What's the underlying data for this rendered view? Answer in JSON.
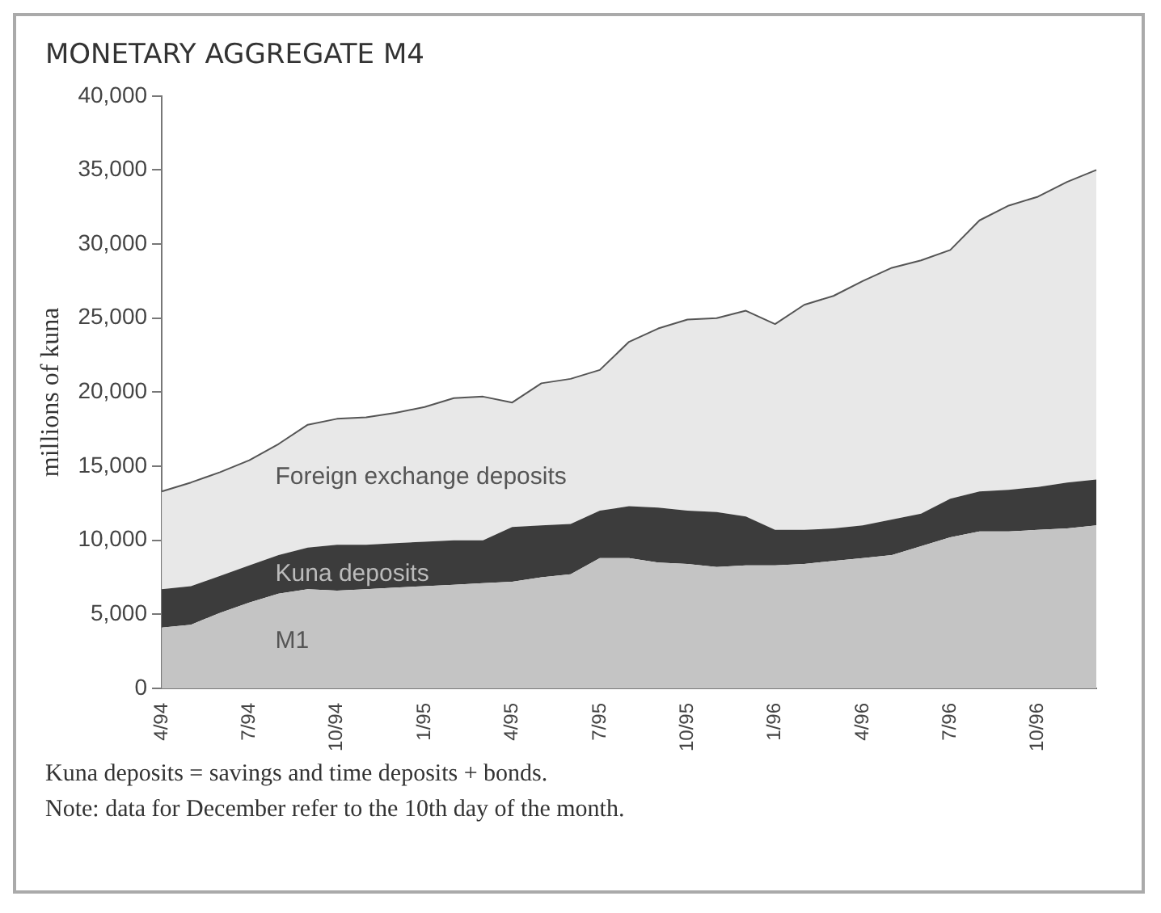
{
  "chart_data": {
    "type": "area",
    "title": "MONETARY AGGREGATE  M4",
    "ylabel": "millions of kuna",
    "categories": [
      "4/94",
      null,
      null,
      "7/94",
      null,
      null,
      "10/94",
      null,
      null,
      "1/95",
      null,
      null,
      "4/95",
      null,
      null,
      "7/95",
      null,
      null,
      "10/95",
      null,
      null,
      "1/96",
      null,
      null,
      "4/96",
      null,
      null,
      "7/96",
      null,
      null,
      "10/96",
      null,
      null
    ],
    "stacked": true,
    "series": [
      {
        "name": "M1",
        "color": "#c4c4c4",
        "values": [
          4100,
          4300,
          5100,
          5800,
          6400,
          6700,
          6600,
          6700,
          6800,
          6900,
          7000,
          7100,
          7200,
          7500,
          7700,
          8800,
          8800,
          8500,
          8400,
          8200,
          8300,
          8300,
          8400,
          8600,
          8800,
          9000,
          9600,
          10200,
          10600,
          10600,
          10700,
          10800,
          11000
        ]
      },
      {
        "name": "Kuna deposits",
        "color": "#3c3c3c",
        "values": [
          2600,
          2600,
          2500,
          2500,
          2600,
          2800,
          3100,
          3000,
          3000,
          3000,
          3000,
          2900,
          3700,
          3500,
          3400,
          3200,
          3500,
          3700,
          3600,
          3700,
          3300,
          2400,
          2300,
          2200,
          2200,
          2400,
          2200,
          2600,
          2700,
          2800,
          2900,
          3100,
          3100
        ]
      },
      {
        "name": "Foreign exchange deposits",
        "color": "#e8e8e8",
        "values": [
          6600,
          7000,
          7000,
          7100,
          7500,
          8300,
          8500,
          8600,
          8800,
          9100,
          9600,
          9700,
          8400,
          9600,
          9800,
          9500,
          11100,
          12100,
          12900,
          13100,
          13900,
          13900,
          15200,
          15700,
          16500,
          17000,
          17100,
          16800,
          18300,
          19200,
          19600,
          20300,
          20900
        ]
      }
    ],
    "ylim": [
      0,
      40000
    ],
    "yticks": [
      0,
      {
        "value": 5000,
        "label": "5,000"
      },
      {
        "value": 10000,
        "label": "10,000"
      },
      {
        "value": 15000,
        "label": "15,000"
      },
      {
        "value": 20000,
        "label": "20,000"
      },
      {
        "value": 25000,
        "label": "25,000"
      },
      {
        "value": 30000,
        "label": "30,000"
      },
      {
        "value": 35000,
        "label": "35,000"
      },
      {
        "value": 40000,
        "label": "40,000"
      }
    ],
    "grid": false,
    "legend": false,
    "annotations": [
      "Kuna deposits = savings and time deposits + bonds.",
      "Note: data for December refer to the 10th day of the month."
    ]
  }
}
